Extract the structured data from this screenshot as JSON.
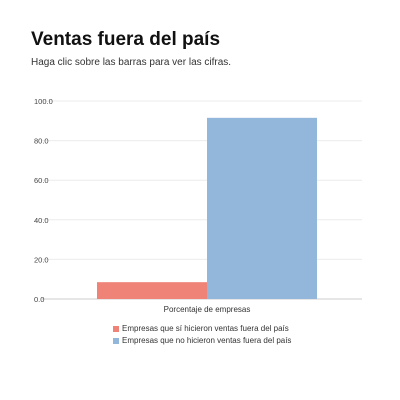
{
  "header": {
    "title": "Ventas fuera del país",
    "subtitle": "Haga clic sobre las barras para ver las cifras."
  },
  "chart_data": {
    "type": "bar",
    "categories": [
      "Porcentaje de empresas"
    ],
    "series": [
      {
        "name": "Empresas que sí hicieron ventas fuera del país",
        "values": [
          8.5
        ],
        "color": "#f08378"
      },
      {
        "name": "Empresas que no hicieron ventas fuera del país",
        "values": [
          91.5
        ],
        "color": "#92b7da"
      }
    ],
    "ylim": [
      0,
      100
    ],
    "yticks": [
      "0.0",
      "20.0",
      "40.0",
      "60.0",
      "80.0",
      "100.0"
    ],
    "grid": true,
    "legend": "bottom"
  }
}
